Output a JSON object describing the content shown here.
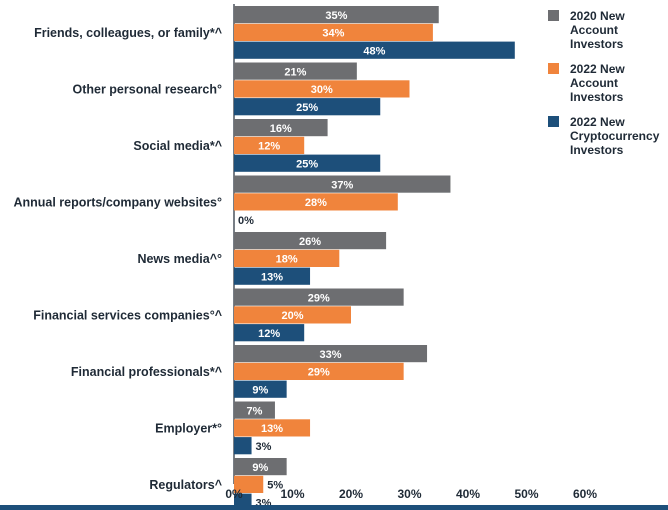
{
  "chart_data": {
    "type": "bar",
    "orientation": "horizontal",
    "categories": [
      "Friends, colleagues, or family*^",
      "Other personal research°",
      "Social media*^",
      "Annual reports/company websites°",
      "News media^°",
      "Financial services companies°^",
      "Financial professionals*^",
      "Employer*°",
      "Regulators^"
    ],
    "series": [
      {
        "name": "2020 New Account Investors",
        "legend_lines": [
          "2020 New",
          "Account",
          "Investors"
        ],
        "color": "#6d6e71",
        "values": [
          35,
          21,
          16,
          37,
          26,
          29,
          33,
          7,
          9
        ]
      },
      {
        "name": "2022 New Account Investors",
        "legend_lines": [
          "2022 New",
          "Account",
          "Investors"
        ],
        "color": "#f0843c",
        "values": [
          34,
          30,
          12,
          28,
          18,
          20,
          29,
          13,
          5
        ]
      },
      {
        "name": "2022 New Cryptocurrency Investors",
        "legend_lines": [
          "2022 New",
          "Cryptocurrency",
          "Investors"
        ],
        "color": "#1d4f7a",
        "values": [
          48,
          25,
          25,
          0,
          13,
          12,
          9,
          3,
          3
        ]
      }
    ],
    "x_ticks": [
      "0%",
      "10%",
      "20%",
      "30%",
      "40%",
      "50%",
      "60%"
    ],
    "xlim": [
      0,
      60
    ],
    "value_suffix": "%",
    "legend_position": "top-right",
    "grid": false
  }
}
